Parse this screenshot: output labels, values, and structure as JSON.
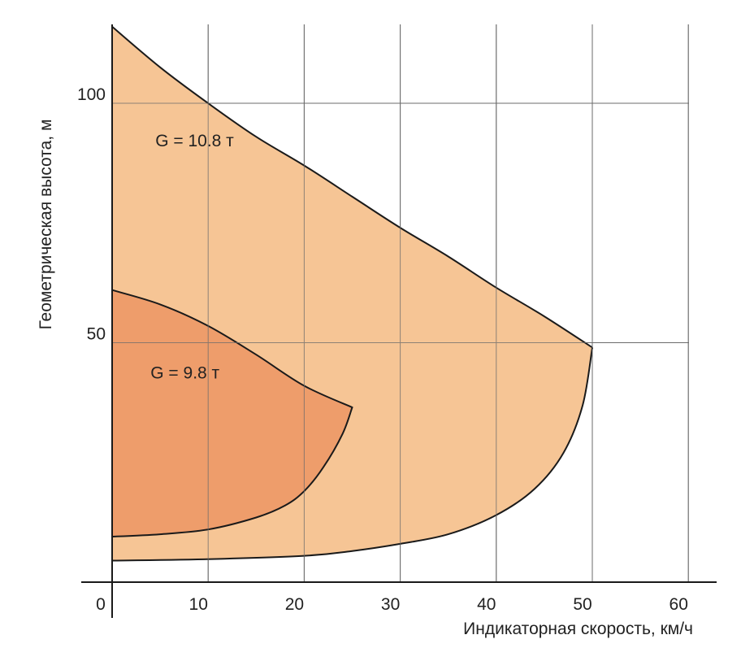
{
  "chart_data": {
    "type": "area",
    "title": "",
    "xlabel": "Индикаторная скорость, км/ч",
    "ylabel": "Геометрическая высота, м",
    "xlim": [
      0,
      62
    ],
    "ylim": [
      0,
      116
    ],
    "xticks": [
      0,
      10,
      20,
      30,
      40,
      50,
      60
    ],
    "yticks": [
      50,
      100
    ],
    "ytick_labels": [
      "50",
      "100"
    ],
    "origin_label": "0",
    "xtick_labels": [
      "10",
      "20",
      "30",
      "40",
      "50",
      "60"
    ],
    "grid": true,
    "legend": "none",
    "series": [
      {
        "label": "G = 10.8 т",
        "label_pos": [
          4.5,
          91
        ],
        "color": "#F6C595",
        "upper": {
          "x": [
            0,
            5,
            10,
            15,
            20,
            25,
            30,
            35,
            40,
            45,
            50
          ],
          "y": [
            116,
            107.5,
            100,
            93,
            87,
            80.5,
            74,
            68,
            61.5,
            55.5,
            49
          ]
        },
        "lower": {
          "x": [
            0,
            10,
            20,
            25,
            30,
            35,
            40,
            44,
            47,
            49,
            50
          ],
          "y": [
            4.5,
            4.8,
            5.5,
            6.5,
            8,
            10,
            14,
            19.5,
            27,
            37,
            49
          ]
        }
      },
      {
        "label": "G = 9.8 т",
        "label_pos": [
          4,
          42.5
        ],
        "color": "#EE9D6B",
        "upper": {
          "x": [
            0,
            5,
            10,
            15,
            20,
            25
          ],
          "y": [
            61,
            58,
            53.5,
            47.5,
            41,
            36.5
          ]
        },
        "lower": {
          "x": [
            0,
            5,
            10,
            15,
            18,
            20,
            22,
            24,
            25
          ],
          "y": [
            9.5,
            10,
            11,
            13.5,
            16,
            19,
            24,
            31,
            36.5
          ]
        }
      }
    ]
  }
}
